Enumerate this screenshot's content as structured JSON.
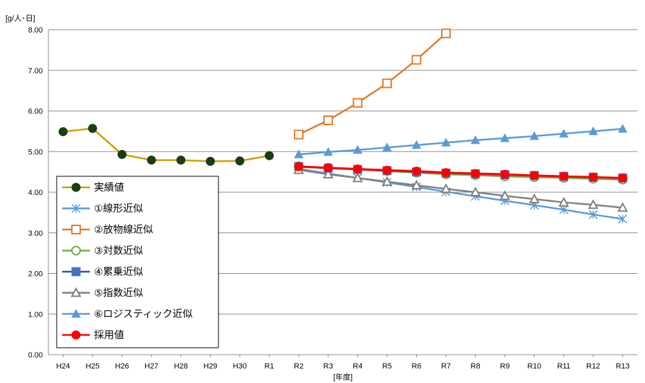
{
  "chart_data": {
    "type": "line",
    "ylabel": "[g/人･日]",
    "xlabel": "[年度]",
    "ylim": [
      0,
      8
    ],
    "yticks": [
      "0.00",
      "1.00",
      "2.00",
      "3.00",
      "4.00",
      "5.00",
      "6.00",
      "7.00",
      "8.00"
    ],
    "categories": [
      "H24",
      "H25",
      "H26",
      "H27",
      "H28",
      "H29",
      "H30",
      "R1",
      "R2",
      "R3",
      "R4",
      "R5",
      "R6",
      "R7",
      "R8",
      "R9",
      "R10",
      "R11",
      "R12",
      "R13"
    ],
    "grid": "horizontal",
    "legend_position": "bottom-left",
    "series": [
      {
        "name": "実績値",
        "color": "#c9a000",
        "marker": "circle-filled",
        "marker_color": "#1a3d14",
        "values": [
          5.49,
          5.57,
          4.93,
          4.79,
          4.79,
          4.76,
          4.77,
          4.9,
          null,
          null,
          null,
          null,
          null,
          null,
          null,
          null,
          null,
          null,
          null,
          null
        ]
      },
      {
        "name": "①線形近似",
        "color": "#5b9bd5",
        "marker": "asterisk",
        "marker_color": "#5b9bd5",
        "values": [
          null,
          null,
          null,
          null,
          null,
          null,
          null,
          null,
          4.58,
          4.46,
          4.35,
          4.24,
          4.13,
          4.01,
          3.9,
          3.79,
          3.68,
          3.57,
          3.45,
          3.34
        ]
      },
      {
        "name": "②放物線近似",
        "color": "#e27b28",
        "marker": "square-open",
        "marker_color": "#e27b28",
        "values": [
          null,
          null,
          null,
          null,
          null,
          null,
          null,
          null,
          5.42,
          5.77,
          6.2,
          6.68,
          7.26,
          7.91,
          null,
          null,
          null,
          null,
          null,
          null
        ]
      },
      {
        "name": "③対数近似",
        "color": "#70ad47",
        "marker": "circle-open",
        "marker_color": "#70ad47",
        "values": [
          null,
          null,
          null,
          null,
          null,
          null,
          null,
          null,
          4.64,
          4.6,
          4.56,
          4.52,
          4.48,
          4.44,
          4.42,
          4.39,
          4.37,
          4.35,
          4.33,
          4.31
        ]
      },
      {
        "name": "④累乗近似",
        "color": "#2f5597",
        "marker": "square-filled",
        "marker_color": "#4472c4",
        "values": [
          null,
          null,
          null,
          null,
          null,
          null,
          null,
          null,
          4.63,
          4.59,
          4.56,
          4.53,
          4.5,
          4.47,
          4.45,
          4.43,
          4.41,
          4.39,
          4.37,
          4.35
        ]
      },
      {
        "name": "⑤指数近似",
        "color": "#808080",
        "marker": "triangle-open",
        "marker_color": "#808080",
        "values": [
          null,
          null,
          null,
          null,
          null,
          null,
          null,
          null,
          4.55,
          4.44,
          4.35,
          4.26,
          4.17,
          4.08,
          4.0,
          3.91,
          3.83,
          3.75,
          3.69,
          3.62
        ]
      },
      {
        "name": "⑥ロジスティック近似",
        "color": "#5b9bd5",
        "marker": "triangle-filled",
        "marker_color": "#5b9bd5",
        "values": [
          null,
          null,
          null,
          null,
          null,
          null,
          null,
          null,
          4.93,
          4.99,
          5.04,
          5.1,
          5.16,
          5.22,
          5.28,
          5.33,
          5.38,
          5.44,
          5.5,
          5.56
        ]
      },
      {
        "name": "採用値",
        "color": "#ff0000",
        "marker": "circle-filled",
        "marker_color": "#ff0000",
        "values": [
          null,
          null,
          null,
          null,
          null,
          null,
          null,
          null,
          4.63,
          4.6,
          4.57,
          4.54,
          4.52,
          4.48,
          4.46,
          4.44,
          4.41,
          4.39,
          4.37,
          4.35
        ]
      }
    ]
  }
}
